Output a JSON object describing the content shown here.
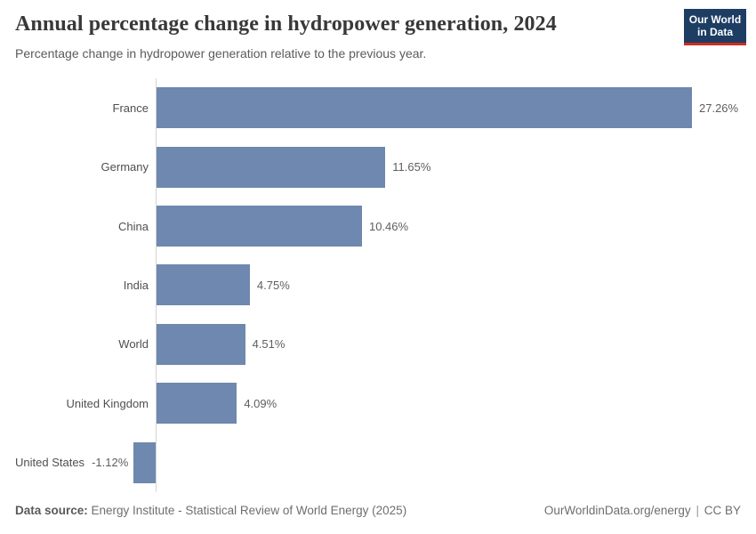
{
  "header": {
    "title": "Annual percentage change in hydropower generation, 2024",
    "subtitle": "Percentage change in hydropower generation relative to the previous year.",
    "logo": {
      "line1": "Our World",
      "line2": "in Data",
      "background_color": "#1d3d63",
      "accent_color": "#d12b21"
    }
  },
  "chart_data": {
    "type": "bar",
    "orientation": "horizontal",
    "title": "Annual percentage change in hydropower generation, 2024",
    "subtitle": "Percentage change in hydropower generation relative to the previous year.",
    "categories": [
      "France",
      "Germany",
      "China",
      "India",
      "World",
      "United Kingdom",
      "United States"
    ],
    "values": [
      27.26,
      11.65,
      10.46,
      4.75,
      4.51,
      4.09,
      -1.12
    ],
    "value_labels": [
      "27.26%",
      "11.65%",
      "10.46%",
      "4.75%",
      "4.51%",
      "4.09%",
      "-1.12%"
    ],
    "unit": "%",
    "bar_color": "#6e88af",
    "axis_color": "#d4d4d4",
    "xlim": [
      -2,
      28
    ],
    "grid": false,
    "legend": "none"
  },
  "footer": {
    "source_label": "Data source:",
    "source_text": " Energy Institute - Statistical Review of World Energy (2025)",
    "site": "OurWorldinData.org/energy",
    "separator": "|",
    "license": "CC BY"
  }
}
